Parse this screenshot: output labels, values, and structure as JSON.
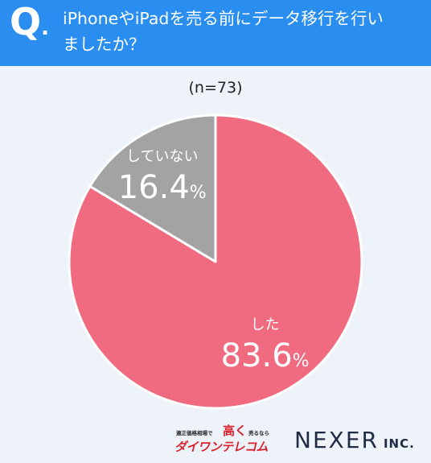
{
  "header": {
    "q_mark": "Q",
    "q_dot": ".",
    "question_line1": "iPhoneやiPadを売る前にデータ移行を行い",
    "question_line2": "ましたか？"
  },
  "chart_data": {
    "type": "pie",
    "n_label": "(n=73)",
    "start_angle_deg": 0,
    "direction": "clockwise",
    "slices": [
      {
        "label": "した",
        "value": 83.6,
        "value_text": "83.6",
        "unit": "%",
        "color": "#f16b80"
      },
      {
        "label": "していない",
        "value": 16.4,
        "value_text": "16.4",
        "unit": "%",
        "color": "#a3a3a3"
      }
    ]
  },
  "footer": {
    "sponsor_small": "適正価格相場で",
    "sponsor_taka": "高く",
    "sponsor_uru": "売るなら",
    "sponsor_brand": "ダイワンテレコム",
    "company": "NEXER",
    "company_suffix": "INC."
  },
  "colors": {
    "header_bg": "#2a8ef0",
    "background": "#edf3f9"
  }
}
